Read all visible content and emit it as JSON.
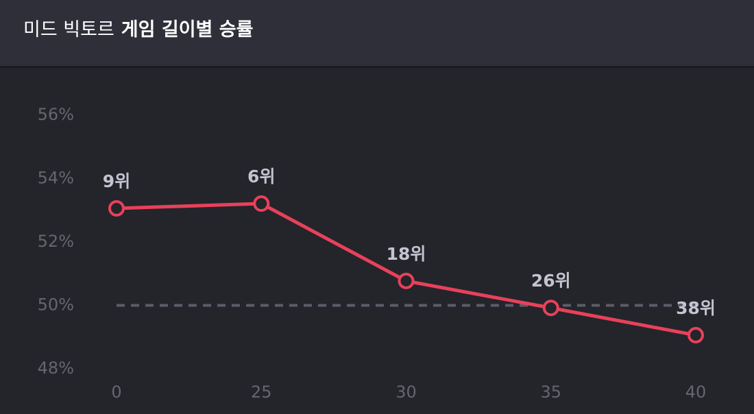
{
  "chart_data": {
    "type": "line",
    "title_prefix": "미드 빅토르",
    "title": "게임 길이별 승률",
    "categories": [
      "0",
      "25",
      "30",
      "35",
      "40"
    ],
    "values": [
      53.06,
      53.21,
      50.77,
      49.92,
      49.06
    ],
    "point_labels": [
      "9위",
      "6위",
      "18위",
      "26위",
      "38위"
    ],
    "color": "#e8415a",
    "ylim": [
      48,
      56
    ],
    "yticks": [
      {
        "value": 48,
        "label": "48%"
      },
      {
        "value": 50,
        "label": "50%"
      },
      {
        "value": 52,
        "label": "52%"
      },
      {
        "value": 54,
        "label": "54%"
      },
      {
        "value": 56,
        "label": "56%"
      }
    ],
    "reference_line": 50
  }
}
